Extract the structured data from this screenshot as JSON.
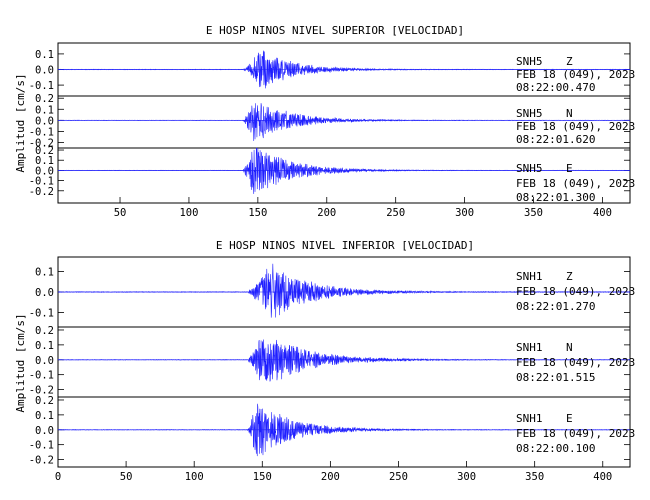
{
  "colors": {
    "trace": "#1f1fff",
    "axis": "#000000",
    "background": "#ffffff"
  },
  "chart_data": [
    {
      "type": "line",
      "title": "E HOSP NINOS NIVEL SUPERIOR [VELOCIDAD]",
      "ylabel": "Amplitud [cm/s]",
      "xlim": [
        5,
        420
      ],
      "xticks": [
        50,
        100,
        150,
        200,
        250,
        300,
        350,
        400
      ],
      "show_x_zero": false,
      "grid": false,
      "panels": [
        {
          "station": "SNH5",
          "component": "Z",
          "date": "FEB 18 (049), 2023",
          "time": "08:22:00.470",
          "ylim": [
            -0.17,
            0.17
          ],
          "yticks": [
            0.1,
            0.0,
            -0.1
          ],
          "ytick_labels": [
            "0.1",
            "0.0",
            "-0.1"
          ],
          "signal_onset": 139,
          "peak_time": 152,
          "peak_amp": 0.15,
          "decay": 22,
          "noise": 0.002
        },
        {
          "station": "SNH5",
          "component": "N",
          "date": "FEB 18 (049), 2023",
          "time": "08:22:01.620",
          "ylim": [
            -0.25,
            0.22
          ],
          "yticks": [
            0.2,
            0.1,
            0.0,
            -0.1,
            -0.2
          ],
          "ytick_labels": [
            "0.2",
            "0.1",
            "0.0",
            "-0.1",
            "-0.2"
          ],
          "signal_onset": 139,
          "peak_time": 147,
          "peak_amp": 0.22,
          "decay": 25,
          "noise": 0.002
        },
        {
          "station": "SNH5",
          "component": "E",
          "date": "FEB 18 (049), 2023",
          "time": "08:22:01.300",
          "ylim": [
            -0.32,
            0.22
          ],
          "yticks": [
            0.2,
            0.1,
            0.0,
            -0.1,
            -0.2
          ],
          "ytick_labels": [
            "0.2",
            "0.1",
            "0.0",
            "-0.1",
            "-0.2"
          ],
          "signal_onset": 139,
          "peak_time": 146,
          "peak_amp": 0.28,
          "decay": 26,
          "noise": 0.002
        }
      ]
    },
    {
      "type": "line",
      "title": "E HOSP NINOS NIVEL INFERIOR [VELOCIDAD]",
      "ylabel": "Amplitud [cm/s]",
      "xlim": [
        0,
        420
      ],
      "xticks": [
        0,
        50,
        100,
        150,
        200,
        250,
        300,
        350,
        400
      ],
      "show_x_zero": true,
      "grid": false,
      "panels": [
        {
          "station": "SNH1",
          "component": "Z",
          "date": "FEB 18 (049), 2023",
          "time": "08:22:01.270",
          "ylim": [
            -0.17,
            0.17
          ],
          "yticks": [
            0.1,
            0.0,
            -0.1
          ],
          "ytick_labels": [
            "0.1",
            "0.0",
            "-0.1"
          ],
          "signal_onset": 139,
          "peak_time": 155,
          "peak_amp": 0.15,
          "decay": 28,
          "noise": 0.002
        },
        {
          "station": "SNH1",
          "component": "N",
          "date": "FEB 18 (049), 2023",
          "time": "08:22:01.515",
          "ylim": [
            -0.25,
            0.22
          ],
          "yticks": [
            0.2,
            0.1,
            0.0,
            -0.1,
            -0.2
          ],
          "ytick_labels": [
            "0.2",
            "0.1",
            "0.0",
            "-0.1",
            "-0.2"
          ],
          "signal_onset": 139,
          "peak_time": 150,
          "peak_amp": 0.21,
          "decay": 30,
          "noise": 0.002
        },
        {
          "station": "SNH1",
          "component": "E",
          "date": "FEB 18 (049), 2023",
          "time": "08:22:00.100",
          "ylim": [
            -0.25,
            0.22
          ],
          "yticks": [
            0.2,
            0.1,
            0.0,
            -0.1,
            -0.2
          ],
          "ytick_labels": [
            "0.2",
            "0.1",
            "0.0",
            "-0.1",
            "-0.2"
          ],
          "signal_onset": 139,
          "peak_time": 146,
          "peak_amp": 0.2,
          "decay": 26,
          "noise": 0.002
        }
      ]
    }
  ]
}
